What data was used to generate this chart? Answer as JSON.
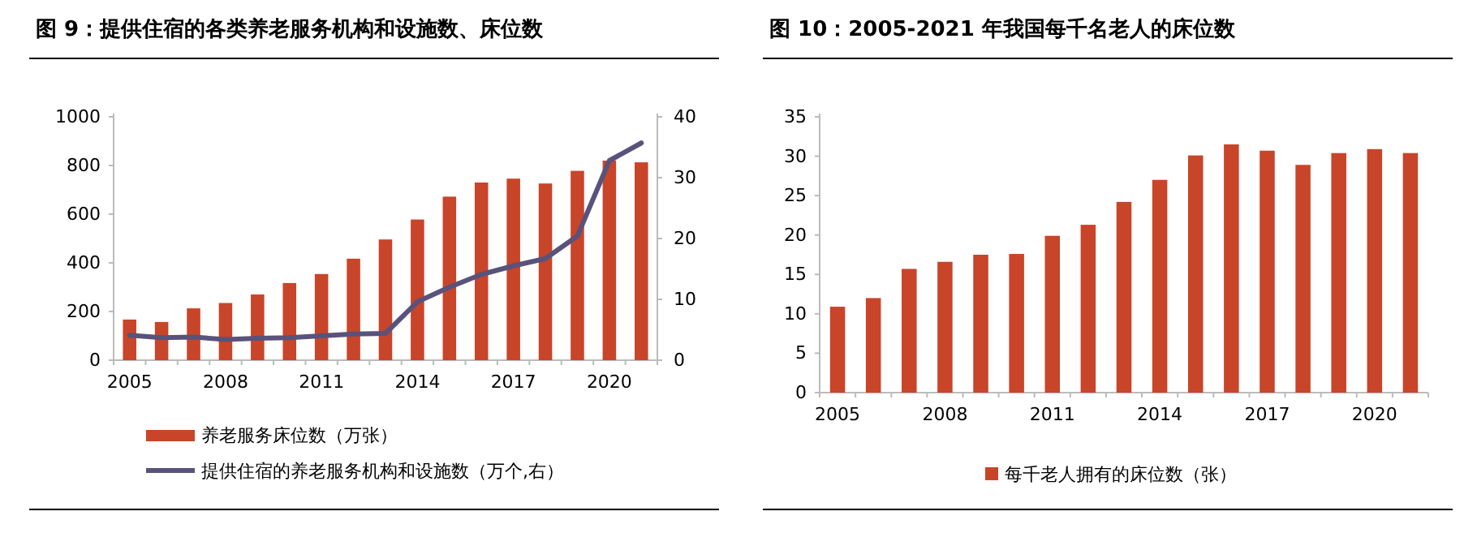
{
  "chart_data": [
    {
      "type": "bar",
      "title": "图 9：提供住宿的各类养老服务机构和设施数、床位数",
      "categories": [
        "2005",
        null,
        null,
        "2008",
        null,
        null,
        "2011",
        null,
        null,
        "2014",
        null,
        null,
        "2017",
        null,
        null,
        "2020",
        null
      ],
      "series": [
        {
          "name": "养老服务床位数（万张）",
          "color": "#c8452a",
          "values": [
            167,
            157,
            213,
            235,
            270,
            317,
            354,
            417,
            496,
            578,
            672,
            730,
            746,
            726,
            778,
            820,
            813
          ]
        },
        {
          "name": "提供住宿的养老服务机构和设施数（万个,右）",
          "type": "line",
          "axis": "y2",
          "color": "#59527a",
          "values": [
            4.1,
            3.7,
            3.8,
            3.4,
            3.6,
            3.7,
            4.0,
            4.3,
            4.4,
            9.6,
            12.0,
            14.1,
            15.5,
            16.7,
            20.4,
            32.8,
            35.7
          ]
        }
      ],
      "ylim": [
        0,
        1000
      ],
      "yticks": [
        0,
        200,
        400,
        600,
        800,
        1000
      ],
      "y2lim": [
        0,
        40
      ],
      "y2ticks": [
        0,
        10,
        20,
        30,
        40
      ],
      "legend": "bottom",
      "grid": false
    },
    {
      "type": "bar",
      "title": "图 10：2005-2021 年我国每千名老人的床位数",
      "categories": [
        "2005",
        null,
        null,
        "2008",
        null,
        null,
        "2011",
        null,
        null,
        "2014",
        null,
        null,
        "2017",
        null,
        null,
        "2020",
        null
      ],
      "series": [
        {
          "name": "每千老人拥有的床位数（张）",
          "color": "#c8452a",
          "values": [
            10.9,
            12.0,
            15.7,
            16.6,
            17.5,
            17.6,
            19.9,
            21.3,
            24.2,
            27.0,
            30.1,
            31.5,
            30.7,
            28.9,
            30.4,
            30.9,
            30.4
          ]
        }
      ],
      "ylim": [
        0,
        35
      ],
      "yticks": [
        0,
        5,
        10,
        15,
        20,
        25,
        30,
        35
      ],
      "legend": "bottom",
      "grid": false
    }
  ]
}
